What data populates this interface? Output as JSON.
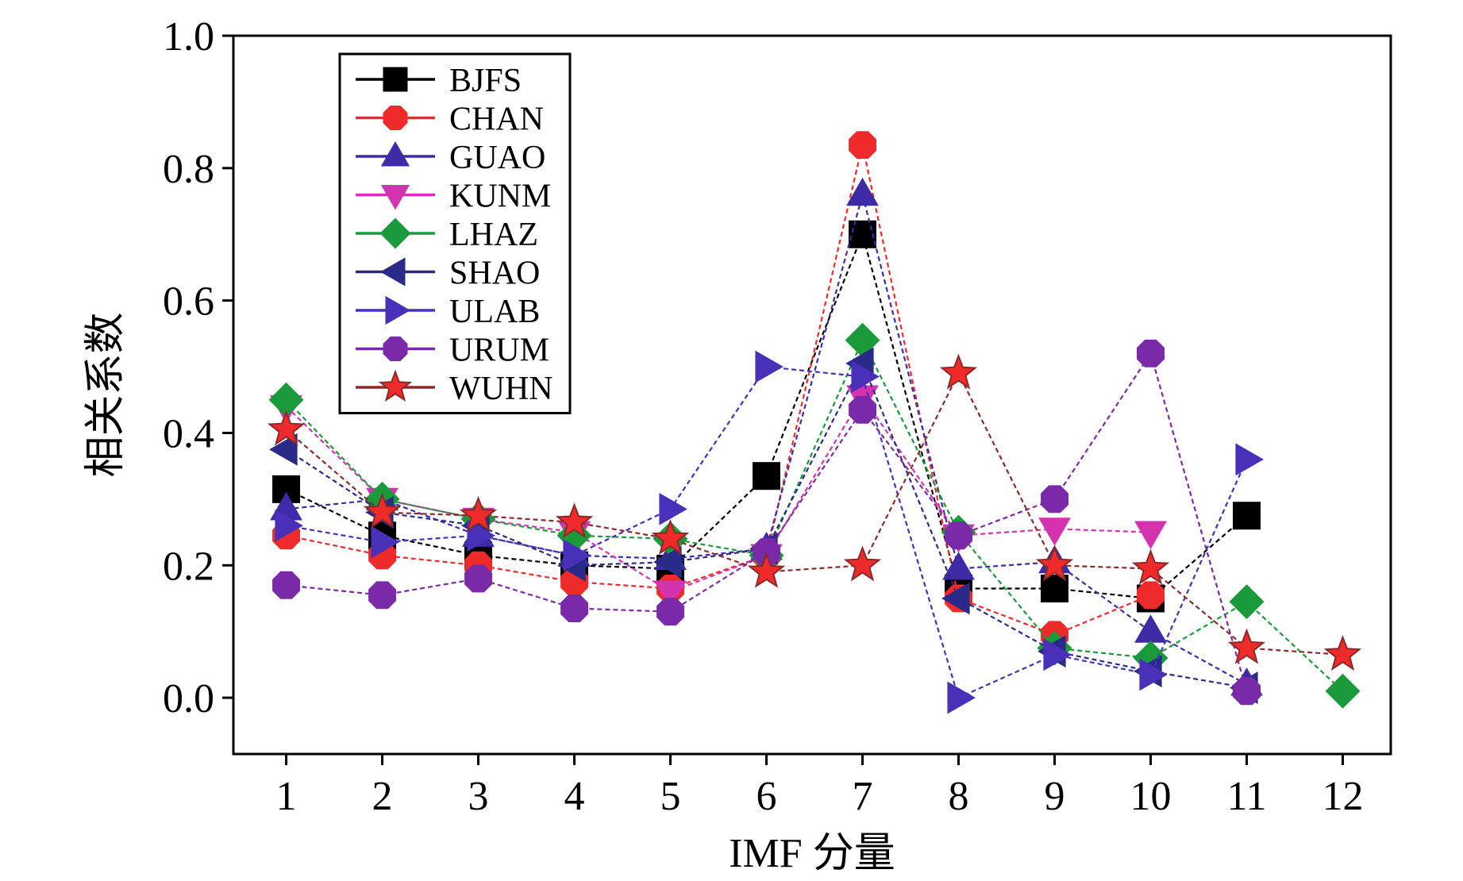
{
  "chart_data": {
    "type": "line",
    "title": "",
    "xlabel": "IMF 分量",
    "ylabel": "相关系数",
    "xlim": [
      0.45,
      12.5
    ],
    "ylim": [
      -0.085,
      1.0
    ],
    "xticks": [
      "1",
      "2",
      "3",
      "4",
      "5",
      "6",
      "7",
      "8",
      "9",
      "10",
      "11",
      "12"
    ],
    "yticks": [
      "0.0",
      "0.2",
      "0.4",
      "0.6",
      "0.8",
      "1.0"
    ],
    "legend_position": "top-left",
    "series": [
      {
        "name": "BJFS",
        "color": "#000000",
        "line_color": "#000000",
        "marker": "square",
        "x": [
          1,
          2,
          3,
          4,
          5,
          6,
          7,
          8,
          9,
          10,
          11
        ],
        "values": [
          0.315,
          0.245,
          0.215,
          0.2,
          0.195,
          0.335,
          0.7,
          0.165,
          0.165,
          0.15,
          0.275
        ]
      },
      {
        "name": "CHAN",
        "color": "#ee2a2a",
        "line_color": "#ee2a2a",
        "marker": "circle",
        "x": [
          1,
          2,
          3,
          4,
          5,
          6,
          7,
          8,
          9,
          10
        ],
        "values": [
          0.245,
          0.215,
          0.2,
          0.175,
          0.165,
          0.215,
          0.835,
          0.15,
          0.095,
          0.155
        ]
      },
      {
        "name": "GUAO",
        "color": "#3f2aa8",
        "line_color": "#3f2aa8",
        "marker": "triangle-up",
        "x": [
          1,
          2,
          3,
          4,
          5,
          6,
          7,
          8,
          9,
          10,
          11
        ],
        "values": [
          0.285,
          0.3,
          0.245,
          0.215,
          0.21,
          0.225,
          0.76,
          0.195,
          0.205,
          0.1,
          0.02
        ]
      },
      {
        "name": "KUNM",
        "color": "#d433b0",
        "line_color": "#d433b0",
        "marker": "triangle-down",
        "x": [
          1,
          2,
          3,
          4,
          5,
          6,
          7,
          8,
          9,
          10
        ],
        "values": [
          0.44,
          0.3,
          0.27,
          0.25,
          0.16,
          0.215,
          0.455,
          0.245,
          0.255,
          0.25
        ]
      },
      {
        "name": "LHAZ",
        "color": "#1a9a3a",
        "line_color": "#1a9a3a",
        "marker": "diamond",
        "x": [
          1,
          2,
          3,
          4,
          5,
          6,
          7,
          8,
          9,
          10,
          11,
          12
        ],
        "values": [
          0.45,
          0.3,
          0.27,
          0.245,
          0.24,
          0.215,
          0.54,
          0.25,
          0.075,
          0.06,
          0.145,
          0.01
        ]
      },
      {
        "name": "SHAO",
        "color": "#2a2a88",
        "line_color": "#2a2a88",
        "marker": "triangle-left",
        "x": [
          1,
          2,
          3,
          4,
          5,
          6,
          7,
          8,
          9,
          10,
          11
        ],
        "values": [
          0.375,
          0.28,
          0.26,
          0.2,
          0.205,
          0.225,
          0.505,
          0.15,
          0.07,
          0.04,
          0.015
        ]
      },
      {
        "name": "ULAB",
        "color": "#4a30b8",
        "line_color": "#4a30b8",
        "marker": "triangle-right",
        "x": [
          1,
          2,
          3,
          4,
          5,
          6,
          7,
          8,
          9,
          10,
          11
        ],
        "values": [
          0.26,
          0.235,
          0.245,
          0.215,
          0.285,
          0.5,
          0.485,
          0.0,
          0.065,
          0.035,
          0.36
        ]
      },
      {
        "name": "URUM",
        "color": "#7a2aa8",
        "line_color": "#7a2aa8",
        "marker": "circle",
        "x": [
          1,
          2,
          3,
          4,
          5,
          6,
          7,
          8,
          9,
          10,
          11
        ],
        "values": [
          0.17,
          0.155,
          0.18,
          0.135,
          0.13,
          0.22,
          0.435,
          0.245,
          0.3,
          0.52,
          0.01
        ]
      },
      {
        "name": "WUHN",
        "color": "#ee2a2a",
        "line_color": "#8a2a2a",
        "marker": "star",
        "x": [
          1,
          2,
          3,
          4,
          5,
          6,
          7,
          8,
          9,
          10,
          11,
          12
        ],
        "values": [
          0.405,
          0.28,
          0.275,
          0.265,
          0.24,
          0.19,
          0.2,
          0.49,
          0.2,
          0.195,
          0.075,
          0.065
        ]
      }
    ]
  }
}
